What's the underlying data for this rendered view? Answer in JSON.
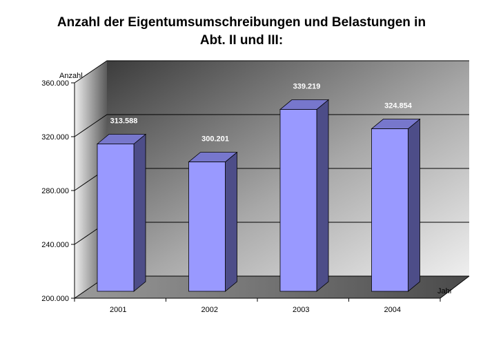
{
  "chart_data": {
    "type": "bar",
    "title_lines": [
      "Anzahl der Eigentumsumschreibungen und Belastungen in",
      "Abt. II und III:"
    ],
    "ylabel": "Anzahl",
    "xlabel": "Jahr",
    "categories": [
      "2001",
      "2002",
      "2003",
      "2004"
    ],
    "values": [
      313588,
      300201,
      339219,
      324854
    ],
    "data_labels": [
      "313.588",
      "300.201",
      "339.219",
      "324.854"
    ],
    "ylim": [
      200000,
      360000
    ],
    "yticks": [
      200000,
      240000,
      280000,
      320000,
      360000
    ],
    "ytick_labels": [
      "200.000",
      "240.000",
      "280.000",
      "320.000",
      "360.000"
    ],
    "grid": true,
    "legend": "none",
    "colors": {
      "bar_front": "#9999ff",
      "bar_side": "#4d4d88",
      "bar_top": "#7777cc",
      "wall_dark": "#4a4a4a",
      "wall_light": "#e6e6e6"
    }
  }
}
